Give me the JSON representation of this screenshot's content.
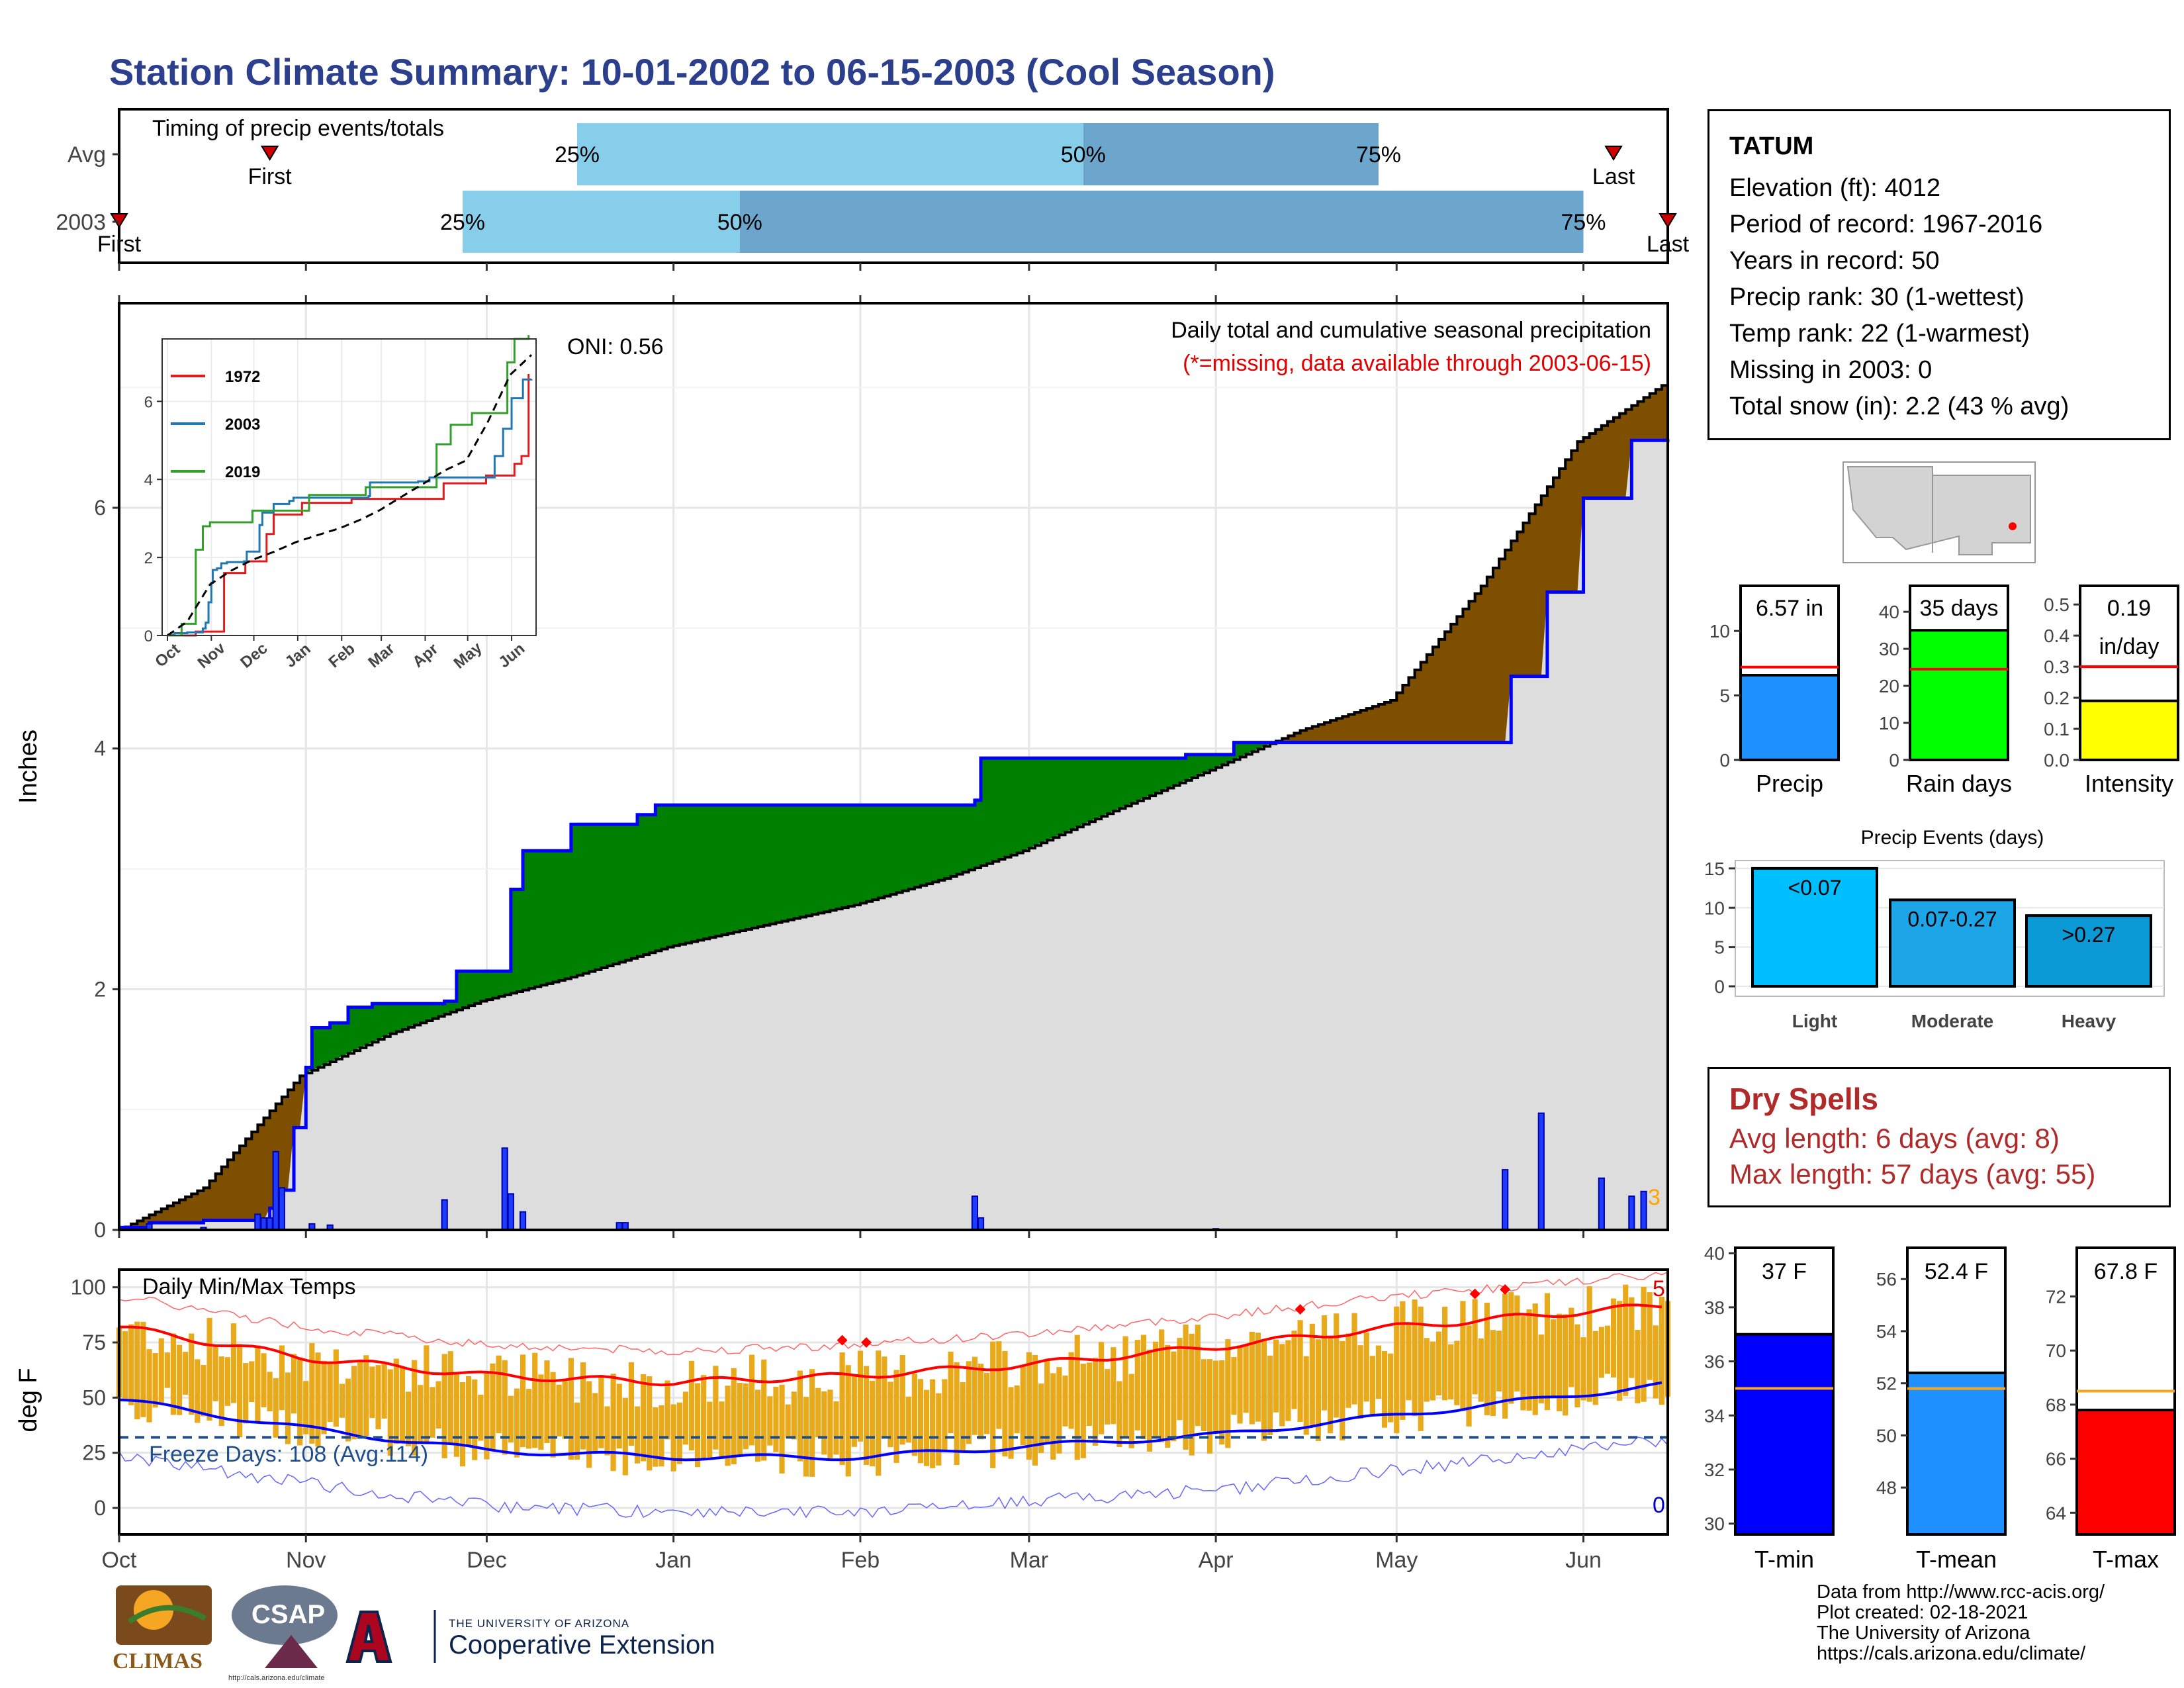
{
  "title": "Station Climate Summary: 10-01-2002 to 06-15-2003 (Cool Season)",
  "timing": {
    "label": "Timing of precip events/totals",
    "rows": [
      {
        "name": "Avg",
        "first_label": "First",
        "last_label": "Last",
        "q25": "25%",
        "q50": "50%",
        "q75": "75%",
        "first_date": "2002-10-26",
        "last_date": "2003-06-06",
        "q25_date": "2002-12-16",
        "q50_date": "2003-03-10",
        "q75_date": "2003-04-28"
      },
      {
        "name": "2003",
        "first_label": "First",
        "last_label": "Last",
        "q25": "25%",
        "q50": "50%",
        "q75": "75%",
        "first_date": "2002-10-01",
        "last_date": "2003-06-15",
        "q25_date": "2002-11-27",
        "q50_date": "2003-01-12",
        "q75_date": "2003-06-01"
      }
    ]
  },
  "precip_panel": {
    "caption": "Daily total and cumulative seasonal precipitation",
    "missing_note": "(*=missing, data available through 2003-06-15)",
    "oni_label": "ONI: 0.56",
    "ylabel": "Inches",
    "corner_count": "3"
  },
  "inset": {
    "legend": [
      {
        "name": "1972",
        "color": "#e31a1c"
      },
      {
        "name": "2003",
        "color": "#1f78b4"
      },
      {
        "name": "2019",
        "color": "#33a02c"
      }
    ]
  },
  "temp_panel": {
    "label": "Daily Min/Max Temps",
    "freeze_label": "Freeze Days: 108 (Avg:114)",
    "ylabel": "deg F",
    "max_count": "5",
    "min_count": "0"
  },
  "months": [
    "Oct",
    "Nov",
    "Dec",
    "Jan",
    "Feb",
    "Mar",
    "Apr",
    "May",
    "Jun"
  ],
  "station": {
    "name": "TATUM",
    "lines": [
      "Elevation (ft): 4012",
      "Period of record: 1967-2016",
      "Years in record: 50",
      "Precip rank: 30 (1-wettest)",
      "Temp rank: 22 (1-warmest)",
      "Missing in 2003: 0",
      "Total snow (in): 2.2 (43 % avg)"
    ]
  },
  "mini_bars": [
    {
      "label": "Precip",
      "value_text": "6.57 in",
      "value": 6.57,
      "avg": 7.2,
      "ymax": 13.5,
      "ticks": [
        "0",
        "5",
        "10"
      ],
      "color": "#1e90ff"
    },
    {
      "label": "Rain days",
      "value_text": "35 days",
      "value": 35,
      "avg": 24.5,
      "ymax": 47,
      "ticks": [
        "0",
        "10",
        "20",
        "30",
        "40"
      ],
      "color": "#00ff00"
    },
    {
      "label": "Intensity",
      "value_text": "0.19",
      "value_text2": "in/day",
      "value": 0.19,
      "avg": 0.3,
      "ymax": 0.56,
      "ticks": [
        "0.0",
        "0.1",
        "0.2",
        "0.3",
        "0.4",
        "0.5"
      ],
      "color": "#ffff00"
    }
  ],
  "events": {
    "title": "Precip Events (days)",
    "bars": [
      {
        "label": "Light",
        "inner": "<0.07",
        "value": 15,
        "color": "#00bfff"
      },
      {
        "label": "Moderate",
        "inner": "0.07-0.27",
        "value": 11,
        "color": "#1ca6e8"
      },
      {
        "label": "Heavy",
        "inner": ">0.27",
        "value": 9,
        "color": "#0b9ad6"
      }
    ],
    "ticks": [
      "0",
      "5",
      "10",
      "15"
    ]
  },
  "dry_spells": {
    "title": "Dry Spells",
    "avg": "Avg length: 6 days (avg: 8)",
    "max": "Max length: 57 days (avg: 55)"
  },
  "temp_bars": [
    {
      "label": "T-min",
      "value_text": "37 F",
      "value": 37,
      "avg": 35,
      "ymin": 29.6,
      "ymax": 40.2,
      "ticks": [
        "30",
        "32",
        "34",
        "36",
        "38",
        "40"
      ],
      "color": "#0000ff"
    },
    {
      "label": "T-mean",
      "value_text": "52.4 F",
      "value": 52.4,
      "avg": 51.8,
      "ymin": 46.2,
      "ymax": 57.2,
      "ticks": [
        "48",
        "50",
        "52",
        "54",
        "56"
      ],
      "color": "#1e90ff"
    },
    {
      "label": "T-max",
      "value_text": "67.8 F",
      "value": 67.8,
      "avg": 68.5,
      "ymin": 63.2,
      "ymax": 73.8,
      "ticks": [
        "64",
        "66",
        "68",
        "70",
        "72"
      ],
      "color": "#ff0000"
    }
  ],
  "credits": [
    "Data from http://www.rcc-acis.org/",
    "Plot created: 02-18-2021",
    "The University of Arizona",
    "https://cals.arizona.edu/climate/"
  ],
  "logos": {
    "climas": "CLIMAS",
    "csap": "CSAP",
    "csap_url": "http://cals.arizona.edu/climate",
    "ua_top": "THE UNIVERSITY OF ARIZONA",
    "ua_bottom": "Cooperative Extension"
  },
  "chart_data": [
    {
      "type": "area",
      "title": "Daily total and cumulative seasonal precipitation",
      "ylabel": "Inches",
      "ylim": [
        0,
        7.7
      ],
      "x_range": [
        "2002-10-01",
        "2003-06-15"
      ],
      "series": [
        {
          "name": "2003",
          "points": [
            [
              "2002-10-01",
              0.02
            ],
            [
              "2002-10-06",
              0.06
            ],
            [
              "2002-10-15",
              0.08
            ],
            [
              "2002-10-26",
              0.18
            ],
            [
              "2002-10-28",
              0.33
            ],
            [
              "2002-10-30",
              0.85
            ],
            [
              "2002-11-01",
              1.35
            ],
            [
              "2002-11-02",
              1.68
            ],
            [
              "2002-11-05",
              1.72
            ],
            [
              "2002-11-08",
              1.85
            ],
            [
              "2002-11-12",
              1.88
            ],
            [
              "2002-11-24",
              1.9
            ],
            [
              "2002-11-26",
              2.15
            ],
            [
              "2002-12-04",
              2.15
            ],
            [
              "2002-12-05",
              2.83
            ],
            [
              "2002-12-07",
              3.15
            ],
            [
              "2002-12-15",
              3.37
            ],
            [
              "2002-12-26",
              3.45
            ],
            [
              "2002-12-29",
              3.53
            ],
            [
              "2003-02-20",
              3.57
            ],
            [
              "2003-02-21",
              3.92
            ],
            [
              "2003-03-27",
              3.95
            ],
            [
              "2003-04-04",
              4.05
            ],
            [
              "2003-05-19",
              4.05
            ],
            [
              "2003-05-20",
              4.6
            ],
            [
              "2003-05-26",
              5.3
            ],
            [
              "2003-06-01",
              6.08
            ],
            [
              "2003-06-09",
              6.56
            ],
            [
              "2003-06-15",
              6.57
            ]
          ]
        },
        {
          "name": "Avg",
          "points": [
            [
              "2002-10-01",
              0.0
            ],
            [
              "2002-10-15",
              0.35
            ],
            [
              "2002-10-31",
              1.28
            ],
            [
              "2002-11-15",
              1.63
            ],
            [
              "2002-11-30",
              1.9
            ],
            [
              "2002-12-15",
              2.1
            ],
            [
              "2002-12-31",
              2.35
            ],
            [
              "2003-01-15",
              2.52
            ],
            [
              "2003-01-31",
              2.7
            ],
            [
              "2003-02-15",
              2.92
            ],
            [
              "2003-02-28",
              3.15
            ],
            [
              "2003-03-15",
              3.48
            ],
            [
              "2003-03-31",
              3.82
            ],
            [
              "2003-04-15",
              4.15
            ],
            [
              "2003-04-30",
              4.4
            ],
            [
              "2003-05-15",
              5.35
            ],
            [
              "2003-05-31",
              6.55
            ],
            [
              "2003-06-15",
              7.05
            ]
          ]
        }
      ],
      "daily_bars": [
        [
          "2002-10-06",
          0.05
        ],
        [
          "2002-10-15",
          0.02
        ],
        [
          "2002-10-24",
          0.13
        ],
        [
          "2002-10-25",
          0.1
        ],
        [
          "2002-10-26",
          0.1
        ],
        [
          "2002-10-27",
          0.65
        ],
        [
          "2002-10-28",
          0.35
        ],
        [
          "2002-11-02",
          0.05
        ],
        [
          "2002-11-05",
          0.04
        ],
        [
          "2002-11-24",
          0.25
        ],
        [
          "2002-12-04",
          0.68
        ],
        [
          "2002-12-05",
          0.3
        ],
        [
          "2002-12-07",
          0.15
        ],
        [
          "2002-12-23",
          0.06
        ],
        [
          "2002-12-24",
          0.06
        ],
        [
          "2003-02-20",
          0.28
        ],
        [
          "2003-02-21",
          0.1
        ],
        [
          "2003-04-01",
          0.01
        ],
        [
          "2003-05-19",
          0.5
        ],
        [
          "2003-05-25",
          0.97
        ],
        [
          "2003-06-04",
          0.43
        ],
        [
          "2003-06-09",
          0.28
        ],
        [
          "2003-06-11",
          0.32
        ]
      ],
      "inset": {
        "type": "line",
        "x_ticks": [
          "Oct",
          "Nov",
          "Dec",
          "Jan",
          "Feb",
          "Mar",
          "Apr",
          "May",
          "Jun"
        ],
        "y_ticks": [
          "0",
          "2",
          "4",
          "6"
        ],
        "ylim": [
          0,
          7.6
        ]
      }
    },
    {
      "type": "bar",
      "title": "Daily Min/Max Temps",
      "ylabel": "deg F",
      "ylim": [
        -12,
        108
      ],
      "y_ticks": [
        "0",
        "25",
        "50",
        "75",
        "100"
      ],
      "freeze_line": 32,
      "series": [
        {
          "name": "Avg max",
          "color": "#ff0000",
          "points": [
            [
              "2002-10-01",
              82
            ],
            [
              "2002-11-01",
              68
            ],
            [
              "2002-12-01",
              60
            ],
            [
              "2003-01-01",
              57
            ],
            [
              "2003-02-01",
              60
            ],
            [
              "2003-03-01",
              65
            ],
            [
              "2003-04-01",
              73
            ],
            [
              "2003-05-01",
              82
            ],
            [
              "2003-06-15",
              92
            ]
          ]
        },
        {
          "name": "Avg min",
          "color": "#0000ff",
          "points": [
            [
              "2002-10-01",
              49
            ],
            [
              "2002-11-01",
              36
            ],
            [
              "2002-12-01",
              26
            ],
            [
              "2003-01-01",
              23
            ],
            [
              "2003-02-01",
              23
            ],
            [
              "2003-03-01",
              28
            ],
            [
              "2003-04-01",
              33
            ],
            [
              "2003-05-01",
              42
            ],
            [
              "2003-06-15",
              56
            ]
          ]
        }
      ]
    }
  ]
}
